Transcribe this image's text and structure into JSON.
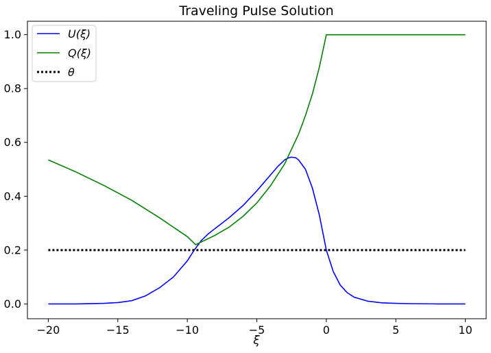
{
  "chart_data": {
    "type": "line",
    "title": "Traveling Pulse Solution",
    "xlabel": "ξ",
    "ylabel": "",
    "xlim": [
      -21.5,
      11.5
    ],
    "ylim": [
      -0.055,
      1.05
    ],
    "xticks": [
      -20,
      -15,
      -10,
      -5,
      0,
      5,
      10
    ],
    "xtick_labels": [
      "−20",
      "−15",
      "−10",
      "−5",
      "0",
      "5",
      "10"
    ],
    "yticks": [
      0.0,
      0.2,
      0.4,
      0.6,
      0.8,
      1.0
    ],
    "ytick_labels": [
      "0.0",
      "0.2",
      "0.4",
      "0.6",
      "0.8",
      "1.0"
    ],
    "grid": false,
    "legend_position": "top-left",
    "series": [
      {
        "name": "U(ξ)",
        "color": "#0000ff",
        "style": "solid",
        "x": [
          -20,
          -18,
          -16,
          -15,
          -14,
          -13,
          -12,
          -11,
          -10,
          -9.5,
          -9,
          -8.5,
          -8,
          -7,
          -6,
          -5,
          -4,
          -3.5,
          -3,
          -2.7,
          -2.5,
          -2.2,
          -2,
          -1.5,
          -1,
          -0.5,
          0,
          0.5,
          1,
          1.5,
          2,
          3,
          4,
          5,
          6,
          8,
          10
        ],
        "y": [
          0.0,
          0.0,
          0.002,
          0.005,
          0.012,
          0.03,
          0.06,
          0.1,
          0.16,
          0.2,
          0.235,
          0.26,
          0.28,
          0.32,
          0.365,
          0.42,
          0.48,
          0.51,
          0.535,
          0.543,
          0.545,
          0.543,
          0.535,
          0.5,
          0.43,
          0.33,
          0.2,
          0.12,
          0.07,
          0.042,
          0.025,
          0.01,
          0.004,
          0.002,
          0.001,
          0.0,
          0.0
        ]
      },
      {
        "name": "Q(ξ)",
        "color": "#008000",
        "style": "solid",
        "x": [
          -20,
          -18,
          -16,
          -14,
          -12,
          -10,
          -9.4,
          -9,
          -8,
          -7,
          -6,
          -5,
          -4,
          -3,
          -2,
          -1.5,
          -1,
          -0.5,
          0,
          2,
          4,
          6,
          8,
          10
        ],
        "y": [
          0.535,
          0.49,
          0.44,
          0.385,
          0.32,
          0.25,
          0.22,
          0.23,
          0.255,
          0.285,
          0.325,
          0.375,
          0.44,
          0.52,
          0.63,
          0.7,
          0.78,
          0.88,
          1.0,
          1.0,
          1.0,
          1.0,
          1.0,
          1.0
        ]
      },
      {
        "name": "θ",
        "color": "#000000",
        "style": "dotted",
        "x": [
          -20,
          10
        ],
        "y": [
          0.2,
          0.2
        ]
      }
    ]
  }
}
